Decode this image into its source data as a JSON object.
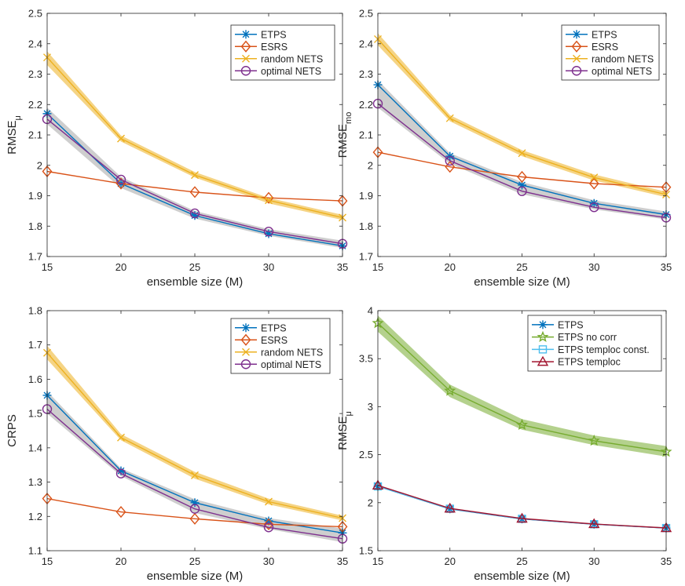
{
  "colors": {
    "ETPS": "#0072BD",
    "ESRS": "#D95319",
    "random NETS": "#EDB120",
    "optimal NETS": "#7E2F8E",
    "ETPS no corr": "#77AC30",
    "ETPS temploc const.": "#4DBEEE",
    "ETPS temploc": "#A2142F",
    "band_gray": "#a6a6a6",
    "band_yellow": "#EDB120",
    "band_green": "#77AC30"
  },
  "chart_data": [
    {
      "type": "line",
      "title": "",
      "xlabel": "ensemble size (M)",
      "ylabel": "RMSE",
      "ylabel_sub": "μ",
      "xlim": [
        15,
        35
      ],
      "ylim": [
        1.7,
        2.5
      ],
      "xticks": [
        "15",
        "20",
        "25",
        "30",
        "35"
      ],
      "yticks": [
        "1.7",
        "1.8",
        "1.9",
        "2",
        "2.1",
        "2.2",
        "2.3",
        "2.4",
        "2.5"
      ],
      "legend_position": "top-right",
      "x": [
        15,
        20,
        25,
        30,
        35
      ],
      "bands": [
        {
          "color_key": "band_gray",
          "lower": [
            2.135,
            1.925,
            1.825,
            1.768,
            1.728
          ],
          "upper": [
            2.19,
            1.962,
            1.85,
            1.79,
            1.752
          ]
        },
        {
          "color_key": "band_yellow",
          "lower": [
            2.33,
            2.078,
            1.96,
            1.875,
            1.82
          ],
          "upper": [
            2.375,
            2.098,
            1.978,
            1.893,
            1.837
          ]
        }
      ],
      "series": [
        {
          "name": "ETPS",
          "marker": "asterisk",
          "values": [
            2.17,
            1.94,
            1.835,
            1.775,
            1.735
          ]
        },
        {
          "name": "ESRS",
          "marker": "diamond",
          "values": [
            1.98,
            1.94,
            1.912,
            1.893,
            1.883
          ]
        },
        {
          "name": "random NETS",
          "marker": "x",
          "values": [
            2.355,
            2.088,
            1.968,
            1.885,
            1.828
          ]
        },
        {
          "name": "optimal NETS",
          "marker": "circle",
          "values": [
            2.152,
            1.953,
            1.842,
            1.782,
            1.742
          ]
        }
      ]
    },
    {
      "type": "line",
      "title": "",
      "xlabel": "ensemble size (M)",
      "ylabel": "RMSE",
      "ylabel_sub": "mo",
      "xlim": [
        15,
        35
      ],
      "ylim": [
        1.7,
        2.5
      ],
      "xticks": [
        "15",
        "20",
        "25",
        "30",
        "35"
      ],
      "yticks": [
        "1.7",
        "1.8",
        "1.9",
        "2",
        "2.1",
        "2.2",
        "2.3",
        "2.4",
        "2.5"
      ],
      "legend_position": "top-right",
      "x": [
        15,
        20,
        25,
        30,
        35
      ],
      "bands": [
        {
          "color_key": "band_gray",
          "lower": [
            2.19,
            2.005,
            1.905,
            1.855,
            1.822
          ],
          "upper": [
            2.28,
            2.04,
            1.945,
            1.885,
            1.848
          ]
        },
        {
          "color_key": "band_yellow",
          "lower": [
            2.395,
            2.145,
            2.03,
            1.95,
            1.895
          ],
          "upper": [
            2.435,
            2.165,
            2.05,
            1.97,
            1.913
          ]
        }
      ],
      "series": [
        {
          "name": "ETPS",
          "marker": "asterisk",
          "values": [
            2.265,
            2.03,
            1.935,
            1.875,
            1.838
          ]
        },
        {
          "name": "ESRS",
          "marker": "diamond",
          "values": [
            2.043,
            1.995,
            1.962,
            1.94,
            1.928
          ]
        },
        {
          "name": "random NETS",
          "marker": "x",
          "values": [
            2.415,
            2.155,
            2.04,
            1.96,
            1.904
          ]
        },
        {
          "name": "optimal NETS",
          "marker": "circle",
          "values": [
            2.203,
            2.015,
            1.915,
            1.862,
            1.828
          ]
        }
      ]
    },
    {
      "type": "line",
      "title": "",
      "xlabel": "ensemble size (M)",
      "ylabel": "CRPS",
      "ylabel_sub": "",
      "xlim": [
        15,
        35
      ],
      "ylim": [
        1.1,
        1.8
      ],
      "xticks": [
        "15",
        "20",
        "25",
        "30",
        "35"
      ],
      "yticks": [
        "1.1",
        "1.2",
        "1.3",
        "1.4",
        "1.5",
        "1.6",
        "1.7",
        "1.8"
      ],
      "legend_position": "top-right",
      "x": [
        15,
        20,
        25,
        30,
        35
      ],
      "bands": [
        {
          "color_key": "band_gray",
          "lower": [
            1.5,
            1.318,
            1.21,
            1.163,
            1.125
          ],
          "upper": [
            1.565,
            1.34,
            1.25,
            1.195,
            1.165
          ]
        },
        {
          "color_key": "band_yellow",
          "lower": [
            1.658,
            1.422,
            1.31,
            1.235,
            1.188
          ],
          "upper": [
            1.698,
            1.44,
            1.33,
            1.252,
            1.202
          ]
        }
      ],
      "series": [
        {
          "name": "ETPS",
          "marker": "asterisk",
          "values": [
            1.553,
            1.333,
            1.24,
            1.187,
            1.152
          ]
        },
        {
          "name": "ESRS",
          "marker": "diamond",
          "values": [
            1.252,
            1.213,
            1.193,
            1.177,
            1.17
          ]
        },
        {
          "name": "random NETS",
          "marker": "x",
          "values": [
            1.677,
            1.43,
            1.32,
            1.243,
            1.195
          ]
        },
        {
          "name": "optimal NETS",
          "marker": "circle",
          "values": [
            1.513,
            1.325,
            1.222,
            1.168,
            1.135
          ]
        }
      ]
    },
    {
      "type": "line",
      "title": "",
      "xlabel": "ensemble size (M)",
      "ylabel": "RMSE",
      "ylabel_sub": "μ",
      "xlim": [
        15,
        35
      ],
      "ylim": [
        1.5,
        4.0
      ],
      "xticks": [
        "15",
        "20",
        "25",
        "30",
        "35"
      ],
      "yticks": [
        "1.5",
        "2",
        "2.5",
        "3",
        "3.5",
        "4"
      ],
      "legend_position": "top-right",
      "x": [
        15,
        20,
        25,
        30,
        35
      ],
      "bands": [
        {
          "color_key": "band_green",
          "lower": [
            3.78,
            3.1,
            2.76,
            2.6,
            2.48
          ],
          "upper": [
            3.95,
            3.23,
            2.87,
            2.7,
            2.59
          ]
        }
      ],
      "series": [
        {
          "name": "ETPS",
          "marker": "asterisk",
          "values": [
            2.17,
            1.935,
            1.83,
            1.775,
            1.735
          ]
        },
        {
          "name": "ETPS no corr",
          "marker": "star",
          "values": [
            3.87,
            3.165,
            2.81,
            2.645,
            2.53
          ]
        },
        {
          "name": "ETPS temploc const.",
          "marker": "square",
          "values": [
            2.17,
            1.937,
            1.832,
            1.776,
            1.736
          ]
        },
        {
          "name": "ETPS temploc",
          "marker": "triangle",
          "values": [
            2.18,
            1.94,
            1.835,
            1.778,
            1.737
          ]
        }
      ]
    }
  ]
}
